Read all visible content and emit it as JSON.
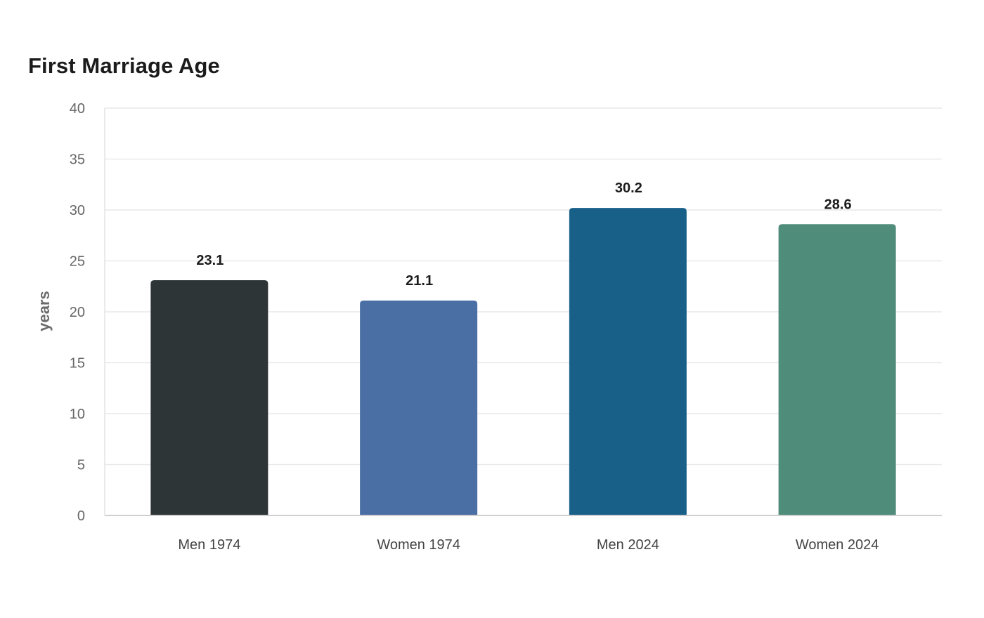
{
  "chart_data": {
    "type": "bar",
    "title": "First Marriage Age",
    "xlabel": "",
    "ylabel": "years",
    "categories": [
      "Men 1974",
      "Women 1974",
      "Men 2024",
      "Women 2024"
    ],
    "values": [
      23.1,
      21.1,
      30.2,
      28.6
    ],
    "value_labels": [
      "23.1",
      "21.1",
      "30.2",
      "28.6"
    ],
    "colors": [
      "#2e3537",
      "#4a6fa4",
      "#186088",
      "#4f8c7a"
    ],
    "ylim": [
      0,
      40
    ],
    "yticks": [
      0,
      5,
      10,
      15,
      20,
      25,
      30,
      35,
      40
    ],
    "grid": true,
    "legend": "none"
  }
}
